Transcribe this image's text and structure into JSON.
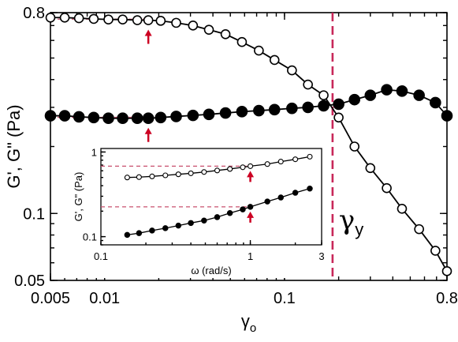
{
  "colors": {
    "accent": "#c8285a",
    "arrow": "#cc0022",
    "dashed_ref": "#c8506e",
    "line": "#000000",
    "open_marker_fill": "#ffffff",
    "filled_marker_fill": "#000000"
  },
  "chart_data": [
    {
      "type": "line",
      "scale": "log-log",
      "xlabel_base": "γ",
      "xlabel_sub": "o",
      "ylabel": "G', G\" (Pa)",
      "xlim": [
        0.005,
        0.8
      ],
      "ylim": [
        0.05,
        0.8
      ],
      "x_tick_labels": [
        "0.005",
        "0.01",
        "0.1",
        "0.8"
      ],
      "y_tick_labels": [
        "0.8",
        "0.1",
        "0.05"
      ],
      "x_tick_values": [
        0.005,
        0.01,
        0.1,
        0.8
      ],
      "y_tick_values": [
        0.8,
        0.1,
        0.05
      ],
      "yield_line_x": 0.185,
      "annotation_base": "γ",
      "annotation_sub": "y",
      "arrow_x": 0.0175,
      "series": [
        {
          "marker": "open",
          "x": [
            0.005,
            0.006,
            0.0072,
            0.0087,
            0.0105,
            0.0126,
            0.0152,
            0.0175,
            0.0205,
            0.025,
            0.031,
            0.038,
            0.047,
            0.058,
            0.072,
            0.088,
            0.11,
            0.135,
            0.165,
            0.2,
            0.245,
            0.3,
            0.37,
            0.45,
            0.56,
            0.69,
            0.8
          ],
          "y": [
            0.76,
            0.76,
            0.755,
            0.75,
            0.745,
            0.745,
            0.74,
            0.74,
            0.735,
            0.72,
            0.7,
            0.67,
            0.64,
            0.59,
            0.54,
            0.49,
            0.44,
            0.38,
            0.34,
            0.27,
            0.2,
            0.16,
            0.13,
            0.105,
            0.085,
            0.068,
            0.055
          ]
        },
        {
          "marker": "filled",
          "x": [
            0.005,
            0.006,
            0.0072,
            0.0087,
            0.0105,
            0.0126,
            0.0152,
            0.0175,
            0.0205,
            0.025,
            0.031,
            0.038,
            0.047,
            0.058,
            0.072,
            0.088,
            0.11,
            0.135,
            0.165,
            0.2,
            0.245,
            0.3,
            0.37,
            0.45,
            0.56,
            0.69,
            0.8
          ],
          "y": [
            0.275,
            0.275,
            0.272,
            0.27,
            0.268,
            0.268,
            0.268,
            0.268,
            0.27,
            0.273,
            0.276,
            0.279,
            0.283,
            0.287,
            0.29,
            0.293,
            0.297,
            0.3,
            0.305,
            0.31,
            0.325,
            0.34,
            0.36,
            0.355,
            0.34,
            0.315,
            0.275
          ]
        }
      ]
    },
    {
      "type": "line",
      "scale": "log-log",
      "xlabel": "ω (rad/s)",
      "ylabel": "G', G\" (Pa)",
      "xlim": [
        0.1,
        3
      ],
      "ylim": [
        0.08,
        1.1
      ],
      "x_tick_labels": [
        "0.1",
        "1",
        "3"
      ],
      "y_tick_labels": [
        "1",
        "0.1"
      ],
      "x_tick_values": [
        0.1,
        1,
        3
      ],
      "y_tick_values": [
        1,
        0.1
      ],
      "arrow_x": 1,
      "series": [
        {
          "marker": "open",
          "x": [
            0.15,
            0.18,
            0.22,
            0.27,
            0.33,
            0.4,
            0.49,
            0.6,
            0.73,
            0.89,
            1.0,
            1.3,
            1.6,
            2.0,
            2.5
          ],
          "y": [
            0.5,
            0.505,
            0.515,
            0.53,
            0.545,
            0.56,
            0.58,
            0.605,
            0.63,
            0.66,
            0.68,
            0.72,
            0.77,
            0.82,
            0.88
          ]
        },
        {
          "marker": "filled",
          "x": [
            0.15,
            0.18,
            0.22,
            0.27,
            0.33,
            0.4,
            0.49,
            0.6,
            0.73,
            0.89,
            1.0,
            1.3,
            1.6,
            2.0,
            2.5
          ],
          "y": [
            0.105,
            0.11,
            0.118,
            0.126,
            0.135,
            0.145,
            0.155,
            0.17,
            0.19,
            0.21,
            0.225,
            0.26,
            0.29,
            0.33,
            0.37
          ]
        }
      ]
    }
  ]
}
